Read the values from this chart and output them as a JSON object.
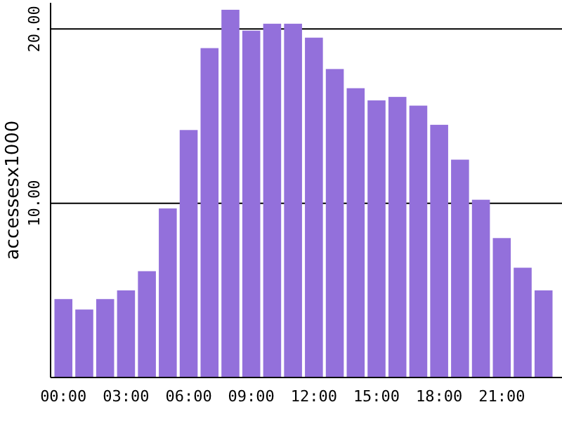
{
  "chart_data": {
    "type": "bar",
    "ylabel": "accessesx1000",
    "categories": [
      "00:00",
      null,
      null,
      "03:00",
      null,
      null,
      "06:00",
      null,
      null,
      "09:00",
      null,
      null,
      "12:00",
      null,
      null,
      "15:00",
      null,
      null,
      "18:00",
      null,
      null,
      "21:00",
      null,
      null
    ],
    "values": [
      4.5,
      3.9,
      4.5,
      5.0,
      6.1,
      9.7,
      14.2,
      18.9,
      21.1,
      19.9,
      20.3,
      20.3,
      19.5,
      17.7,
      16.6,
      15.9,
      16.1,
      15.6,
      14.5,
      12.5,
      10.2,
      8.0,
      6.3,
      5.0
    ],
    "color": "#9370db",
    "ylim": [
      0,
      21.5
    ],
    "yticks": [
      {
        "value": 0,
        "label": null
      },
      {
        "value": 10,
        "label": "10.00"
      },
      {
        "value": 20,
        "label": "20.00"
      }
    ],
    "grid": "y"
  }
}
